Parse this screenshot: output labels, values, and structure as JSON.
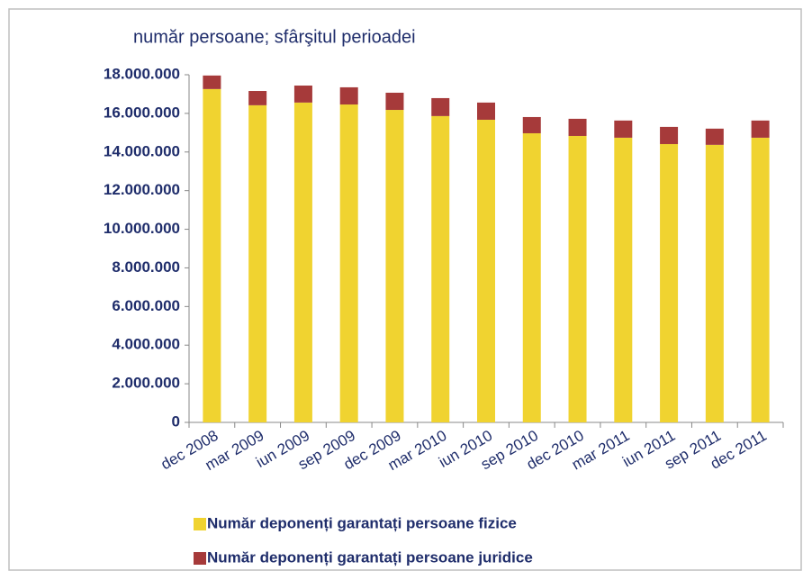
{
  "chart_data": {
    "type": "stacked_bar",
    "title": "număr  persoane; sfârşitul perioadei",
    "categories": [
      "dec 2008",
      "mar 2009",
      "iun 2009",
      "sep 2009",
      "dec 2009",
      "mar 2010",
      "iun 2010",
      "sep 2010",
      "dec 2010",
      "mar 2011",
      "iun 2011",
      "sep 2011",
      "dec 2011"
    ],
    "series": [
      {
        "name": "Număr deponenți garantați persoane fizice",
        "color": "#f0d330",
        "values": [
          17260000,
          16420000,
          16560000,
          16460000,
          16180000,
          15860000,
          15670000,
          14970000,
          14830000,
          14740000,
          14410000,
          14370000,
          14740000
        ]
      },
      {
        "name": "Număr deponenți garantați persoane juridice",
        "color": "#a63a3a",
        "values": [
          700000,
          740000,
          880000,
          890000,
          890000,
          930000,
          890000,
          840000,
          890000,
          890000,
          890000,
          840000,
          890000
        ]
      }
    ],
    "ylim": [
      0,
      18000000
    ],
    "yticks": [
      0,
      {
        "value": 2000000,
        "label": "2.000.000"
      },
      {
        "value": 4000000,
        "label": "4.000.000"
      },
      {
        "value": 6000000,
        "label": "6.000.000"
      },
      {
        "value": 8000000,
        "label": "8.000.000"
      },
      {
        "value": 10000000,
        "label": "10.000.000"
      },
      {
        "value": 12000000,
        "label": "12.000.000"
      },
      {
        "value": 14000000,
        "label": "14.000.000"
      },
      {
        "value": 16000000,
        "label": "16.000.000"
      },
      {
        "value": 18000000,
        "label": "18.000.000"
      }
    ],
    "grid": false
  }
}
